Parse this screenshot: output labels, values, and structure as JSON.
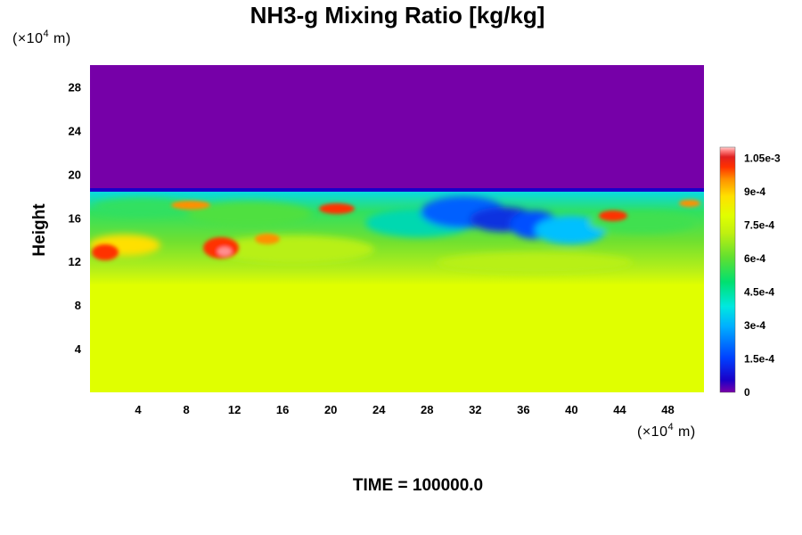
{
  "chart_data": {
    "type": "heatmap",
    "title": "NH3-g Mixing Ratio [kg/kg]",
    "ylabel": "Height",
    "x_unit": {
      "prefix": "(×10",
      "exp": "4",
      "suffix": " m)"
    },
    "y_unit": {
      "prefix": "(×10",
      "exp": "4",
      "suffix": " m)"
    },
    "xlim": [
      0,
      51
    ],
    "ylim": [
      0,
      30
    ],
    "x_ticks": [
      4,
      8,
      12,
      16,
      20,
      24,
      28,
      32,
      36,
      40,
      44,
      48
    ],
    "y_ticks": [
      4,
      8,
      12,
      16,
      20,
      24,
      28
    ],
    "colorbar": {
      "min": 0,
      "max": 0.0011,
      "tick_values": [
        0,
        0.00015,
        0.0003,
        0.00045,
        0.0006,
        0.00075,
        0.0009,
        0.00105
      ],
      "tick_labels": [
        "0",
        "1.5e-4",
        "3e-4",
        "4.5e-4",
        "6e-4",
        "7.5e-4",
        "9e-4",
        "1.05e-3"
      ],
      "colors": [
        "#7a00a8",
        "#1a00c8",
        "#0040ff",
        "#00b0ff",
        "#00e8e0",
        "#00e070",
        "#40e030",
        "#a0e020",
        "#e0ff00",
        "#ffe000",
        "#ff9000",
        "#ff3000",
        "#e02020",
        "#ff8080",
        "#ffd0d0"
      ]
    },
    "field_summary": {
      "upper_layer": {
        "y_range": [
          18.5,
          30
        ],
        "value": 0
      },
      "lower_layer": {
        "y_range": [
          0,
          11
        ],
        "value": 0.00078
      },
      "mixing_layer": {
        "y_range": [
          11,
          18.5
        ],
        "value_range": [
          0.0001,
          0.00108
        ]
      }
    },
    "time_label": "TIME = 100000.0"
  }
}
